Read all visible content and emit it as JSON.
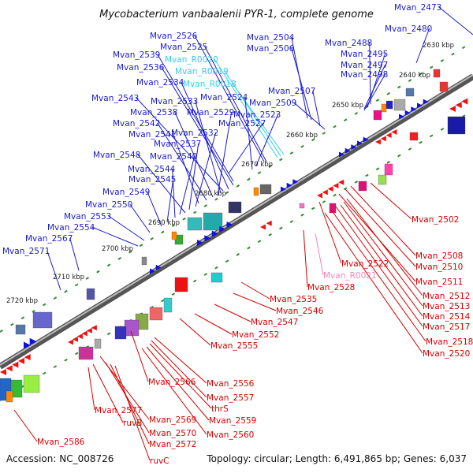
{
  "title": "Mycobacterium vanbaalenii PYR-1, complete genome",
  "footer": {
    "accession": "Accession: NC_008726",
    "summary": "Topology: circular; Length: 6,491,865 bp; Genes: 6,037"
  },
  "colors": {
    "upper_label": "#1a1acc",
    "lower_label": "#d40000",
    "rna_label_upper": "#33ccee",
    "rna_label_lower": "#ee88bb",
    "backbone": "#777777",
    "ticks": "#2e8b2e"
  },
  "kbp_labels": [
    "2630 kbp",
    "2640 kbp",
    "2650 kbp",
    "2660 kbp",
    "2670 kbp",
    "2680 kbp",
    "2690 kbp",
    "2700 kbp",
    "2710 kbp",
    "2720 kbp"
  ],
  "upper_genes": [
    "Mvan_2473",
    "Mvan_2480",
    "Mvan_2488",
    "Mvan_2495",
    "Mvan_2497",
    "Mvan_2498",
    "Mvan_2504",
    "Mvan_2506",
    "Mvan_2507",
    "Mvan_2509",
    "Mvan_2526",
    "Mvan_2525",
    "Mvan_R0020",
    "Mvan_R0019",
    "Mvan_R0018",
    "Mvan_2524",
    "Mvan_2523",
    "Mvan_2539",
    "Mvan_2536",
    "Mvan_2534",
    "Mvan_2543",
    "Mvan_2533",
    "Mvan_2538",
    "Mvan_2529",
    "Mvan_2542",
    "Mvan_2527",
    "Mvan_2541",
    "Mvan_2532",
    "Mvan_2537",
    "Mvan_2548",
    "Mvan_2540",
    "Mvan_2544",
    "Mvan_2545",
    "Mvan_2549",
    "Mvan_2550",
    "Mvan_2553",
    "Mvan_2554",
    "Mvan_2567",
    "Mvan_2571"
  ],
  "lower_genes": [
    "Mvan_2502",
    "Mvan_2508",
    "Mvan_2510",
    "Mvan_2511",
    "Mvan_2512",
    "Mvan_2513",
    "Mvan_2514",
    "Mvan_2517",
    "Mvan_2518",
    "Mvan_2520",
    "Mvan_2522",
    "Mvan_R0021",
    "Mvan_2528",
    "Mvan_2535",
    "Mvan_2546",
    "Mvan_2547",
    "Mvan_2552",
    "Mvan_2555",
    "Mvan_2566",
    "Mvan_2556",
    "Mvan_2557",
    "thrS",
    "Mvan_2559",
    "Mvan_2560",
    "Mvan_2577",
    "ruvB",
    "Mvan_2569",
    "Mvan_2570",
    "Mvan_2572",
    "ruvC",
    "Mvan_2586"
  ]
}
